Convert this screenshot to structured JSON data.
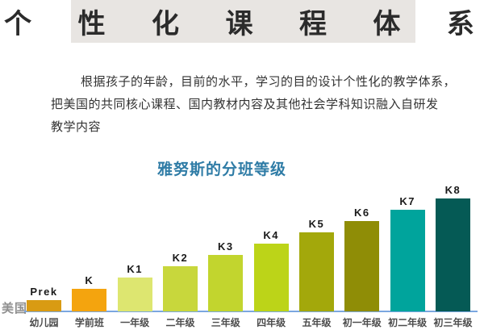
{
  "page": {
    "title": "个 性 化 课 程 体 系"
  },
  "intro": {
    "lines": [
      "根据孩子的年龄，目前的水平，学习的目的设计个性化的教学体系，",
      "把美国的共同核心课程、国内教材内容及其他社会学科知识融入自研发",
      "教学内容"
    ]
  },
  "chart": {
    "side_label": "美国"
  },
  "colors": {
    "title_band_bg": "#e8e5e2",
    "chart_title_blue": "#2f7ca6",
    "baseline_blue": "#7ba7e0",
    "side_label_gray": "#8f8f8f"
  },
  "chart_data": {
    "type": "bar",
    "title": "雅努斯的分班等级",
    "xlabel": "",
    "ylabel": "",
    "categories": [
      "幼儿园",
      "学前班",
      "一年级",
      "二年级",
      "三年级",
      "四年级",
      "五年级",
      "初一年级",
      "初二年级",
      "初三年级"
    ],
    "bar_labels": [
      "Prek",
      "K",
      "K1",
      "K2",
      "K3",
      "K4",
      "K5",
      "K6",
      "K7",
      "K8"
    ],
    "series": [
      {
        "name": "美国",
        "values": [
          1,
          2,
          3,
          4,
          5,
          6,
          7,
          8,
          9,
          10
        ]
      }
    ],
    "ylim": [
      0,
      10
    ],
    "grid": false,
    "legend_position": "none",
    "bar_colors": [
      "#d99b13",
      "#f4a40e",
      "#dde670",
      "#c8d73c",
      "#c2d52e",
      "#bcd418",
      "#a3a80b",
      "#8f8d06",
      "#00a49c",
      "#055a55"
    ]
  }
}
